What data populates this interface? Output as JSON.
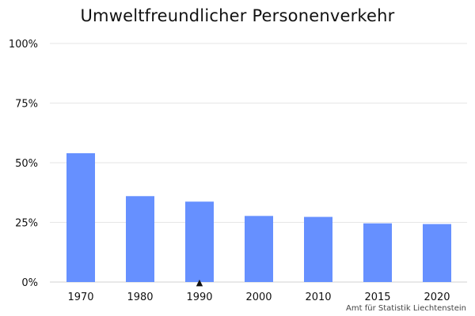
{
  "chart_data": {
    "type": "bar",
    "title": "Umweltfreundlicher Personenverkehr",
    "categories": [
      "1970",
      "1980",
      "1990",
      "2000",
      "2010",
      "2015",
      "2020"
    ],
    "values": [
      54,
      36,
      33.7,
      27.7,
      27.3,
      24.6,
      24.3
    ],
    "ylim": [
      0,
      100
    ],
    "yticks": [
      0,
      25,
      50,
      75,
      100
    ],
    "ytick_labels": [
      "0%",
      "25%",
      "50%",
      "75%",
      "100%"
    ],
    "xlabel": "",
    "ylabel": "",
    "grid": true,
    "bar_color": "#6690ff",
    "marker": {
      "category": "1990",
      "symbol": "▲"
    },
    "source": "Amt für Statistik Liechtenstein"
  }
}
